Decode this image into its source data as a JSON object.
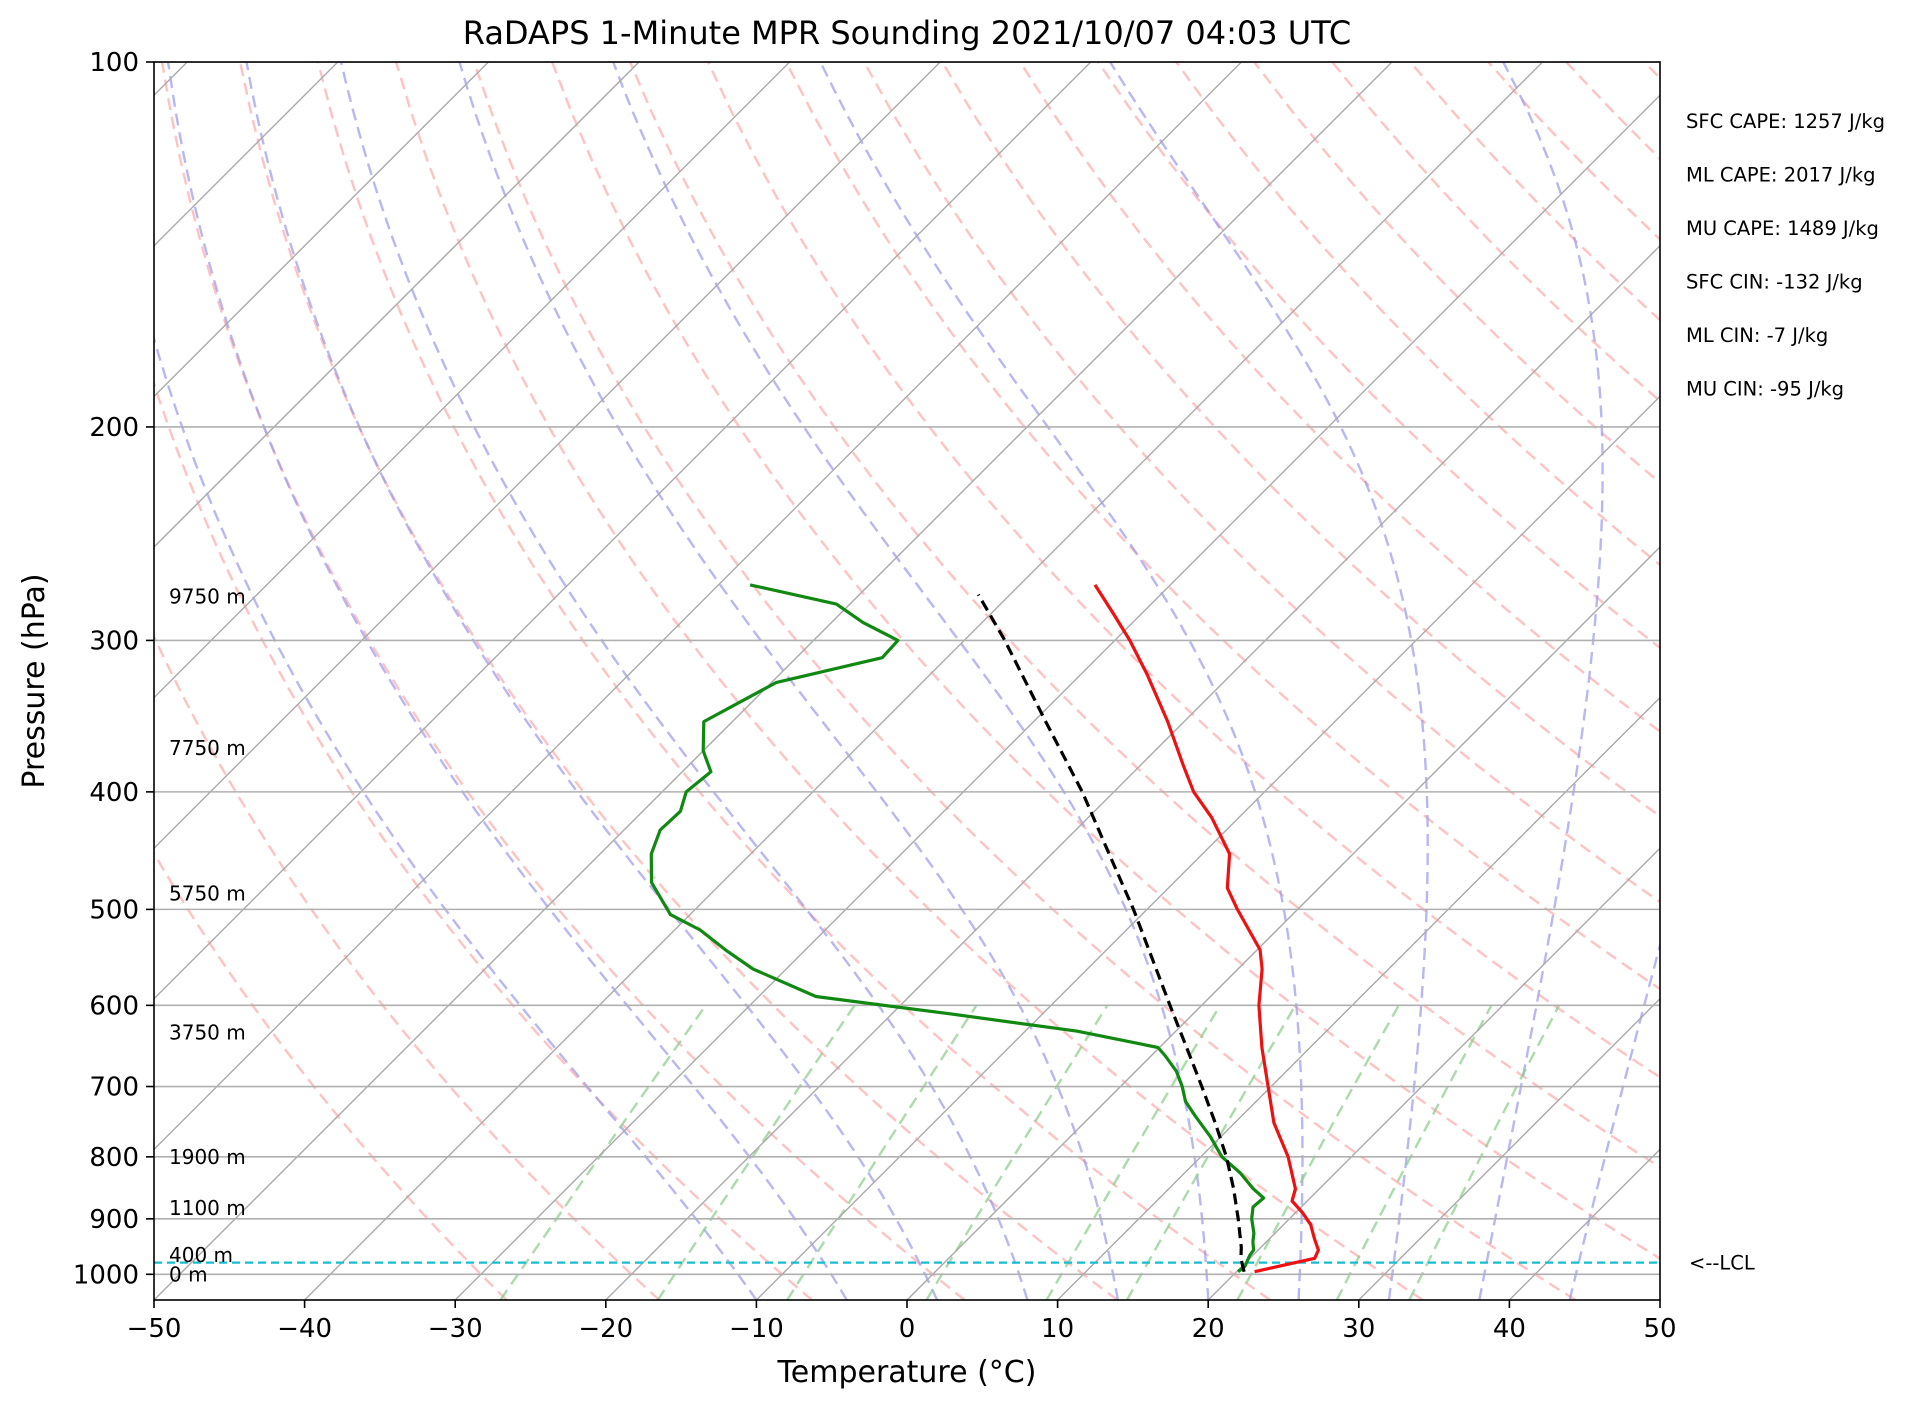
{
  "chart_data": {
    "type": "line",
    "chart_kind": "skew-t log-p sounding",
    "title": "RaDAPS 1-Minute MPR Sounding 2021/10/07 04:03 UTC",
    "xlabel": "Temperature (°C)",
    "ylabel": "Pressure (hPa)",
    "xlim": [
      -50,
      50
    ],
    "ylim": [
      1050,
      100
    ],
    "y_scale": "log",
    "x_ticks": [
      {
        "value": -50,
        "label": "−50"
      },
      {
        "value": -40,
        "label": "−40"
      },
      {
        "value": -30,
        "label": "−30"
      },
      {
        "value": -20,
        "label": "−20"
      },
      {
        "value": -10,
        "label": "−10"
      },
      {
        "value": 0,
        "label": "0"
      },
      {
        "value": 10,
        "label": "10"
      },
      {
        "value": 20,
        "label": "20"
      },
      {
        "value": 30,
        "label": "30"
      },
      {
        "value": 40,
        "label": "40"
      },
      {
        "value": 50,
        "label": "50"
      }
    ],
    "y_ticks": [
      {
        "value": 100,
        "label": "100"
      },
      {
        "value": 200,
        "label": "200"
      },
      {
        "value": 300,
        "label": "300"
      },
      {
        "value": 400,
        "label": "400"
      },
      {
        "value": 500,
        "label": "500"
      },
      {
        "value": 600,
        "label": "600"
      },
      {
        "value": 700,
        "label": "700"
      },
      {
        "value": 800,
        "label": "800"
      },
      {
        "value": 900,
        "label": "900"
      },
      {
        "value": 1000,
        "label": "1000"
      }
    ],
    "grid": true,
    "background_lines": {
      "isotherms_color": "#aaaaaa",
      "dry_adiabats_color": "#ff9999",
      "moist_adiabats_color": "#9999ee",
      "mixing_ratio_color": "#88cc88",
      "mixing_ratio_top_hPa": 600
    },
    "series": [
      {
        "role": "temperature",
        "color": "#ee1111",
        "points": [
          {
            "p": 995,
            "t": 21.2
          },
          {
            "p": 985,
            "t": 22.4
          },
          {
            "p": 970,
            "t": 24.3
          },
          {
            "p": 955,
            "t": 24.0
          },
          {
            "p": 935,
            "t": 23.0
          },
          {
            "p": 910,
            "t": 21.8
          },
          {
            "p": 890,
            "t": 20.5
          },
          {
            "p": 870,
            "t": 19.0
          },
          {
            "p": 850,
            "t": 18.4
          },
          {
            "p": 800,
            "t": 15.8
          },
          {
            "p": 750,
            "t": 12.6
          },
          {
            "p": 700,
            "t": 9.8
          },
          {
            "p": 650,
            "t": 6.8
          },
          {
            "p": 600,
            "t": 3.8
          },
          {
            "p": 560,
            "t": 1.6
          },
          {
            "p": 540,
            "t": 0.2
          },
          {
            "p": 500,
            "t": -4.0
          },
          {
            "p": 480,
            "t": -6.1
          },
          {
            "p": 450,
            "t": -8.2
          },
          {
            "p": 420,
            "t": -11.8
          },
          {
            "p": 400,
            "t": -14.7
          },
          {
            "p": 380,
            "t": -17.2
          },
          {
            "p": 350,
            "t": -21.1
          },
          {
            "p": 320,
            "t": -25.6
          },
          {
            "p": 300,
            "t": -29.0
          },
          {
            "p": 285,
            "t": -31.9
          },
          {
            "p": 270,
            "t": -35.0
          }
        ]
      },
      {
        "role": "dewpoint",
        "color": "#118811",
        "points": [
          {
            "p": 995,
            "t": 20.1
          },
          {
            "p": 985,
            "t": 20.2
          },
          {
            "p": 965,
            "t": 19.8
          },
          {
            "p": 955,
            "t": 19.7
          },
          {
            "p": 940,
            "t": 19.1
          },
          {
            "p": 925,
            "t": 18.6
          },
          {
            "p": 900,
            "t": 17.5
          },
          {
            "p": 880,
            "t": 16.8
          },
          {
            "p": 865,
            "t": 16.9
          },
          {
            "p": 850,
            "t": 15.6
          },
          {
            "p": 825,
            "t": 13.7
          },
          {
            "p": 800,
            "t": 11.4
          },
          {
            "p": 770,
            "t": 9.3
          },
          {
            "p": 740,
            "t": 6.9
          },
          {
            "p": 720,
            "t": 5.3
          },
          {
            "p": 700,
            "t": 4.1
          },
          {
            "p": 680,
            "t": 2.7
          },
          {
            "p": 660,
            "t": 0.9
          },
          {
            "p": 650,
            "t": -0.1
          },
          {
            "p": 630,
            "t": -6.6
          },
          {
            "p": 610,
            "t": -16.0
          },
          {
            "p": 590,
            "t": -26.2
          },
          {
            "p": 560,
            "t": -32.2
          },
          {
            "p": 540,
            "t": -35.3
          },
          {
            "p": 520,
            "t": -38.3
          },
          {
            "p": 505,
            "t": -41.3
          },
          {
            "p": 475,
            "t": -44.7
          },
          {
            "p": 450,
            "t": -46.6
          },
          {
            "p": 430,
            "t": -47.6
          },
          {
            "p": 415,
            "t": -47.5
          },
          {
            "p": 400,
            "t": -48.4
          },
          {
            "p": 385,
            "t": -48.1
          },
          {
            "p": 370,
            "t": -50.0
          },
          {
            "p": 350,
            "t": -51.9
          },
          {
            "p": 325,
            "t": -49.7
          },
          {
            "p": 310,
            "t": -44.3
          },
          {
            "p": 300,
            "t": -44.4
          },
          {
            "p": 290,
            "t": -47.9
          },
          {
            "p": 280,
            "t": -50.9
          },
          {
            "p": 270,
            "t": -57.9
          }
        ]
      },
      {
        "role": "parcel",
        "color": "#000000",
        "dashed": true,
        "points": [
          {
            "p": 995,
            "t": 20.5
          },
          {
            "p": 970,
            "t": 19.4
          },
          {
            "p": 950,
            "t": 18.7
          },
          {
            "p": 900,
            "t": 16.6
          },
          {
            "p": 850,
            "t": 14.3
          },
          {
            "p": 800,
            "t": 11.7
          },
          {
            "p": 750,
            "t": 8.7
          },
          {
            "p": 700,
            "t": 5.4
          },
          {
            "p": 650,
            "t": 1.8
          },
          {
            "p": 600,
            "t": -2.1
          },
          {
            "p": 550,
            "t": -6.3
          },
          {
            "p": 500,
            "t": -10.9
          },
          {
            "p": 450,
            "t": -16.2
          },
          {
            "p": 400,
            "t": -22.1
          },
          {
            "p": 350,
            "t": -29.2
          },
          {
            "p": 300,
            "t": -37.3
          },
          {
            "p": 275,
            "t": -42.1
          }
        ]
      }
    ],
    "lcl_hPa": 978,
    "lcl_label": "<--LCL",
    "height_labels": [
      {
        "label": "9750 m",
        "p": 276
      },
      {
        "label": "7750 m",
        "p": 368
      },
      {
        "label": "5750 m",
        "p": 485
      },
      {
        "label": "3750 m",
        "p": 632
      },
      {
        "label": "1900 m",
        "p": 800
      },
      {
        "label": "1100 m",
        "p": 882
      },
      {
        "label": "400 m",
        "p": 964
      },
      {
        "label": "0 m",
        "p": 1000
      }
    ],
    "annotations": [
      "SFC CAPE: 1257 J/kg",
      "ML CAPE: 2017 J/kg",
      "MU CAPE: 1489 J/kg",
      "SFC CIN: -132 J/kg",
      "ML CIN: -7 J/kg",
      "MU CIN: -95 J/kg"
    ]
  }
}
